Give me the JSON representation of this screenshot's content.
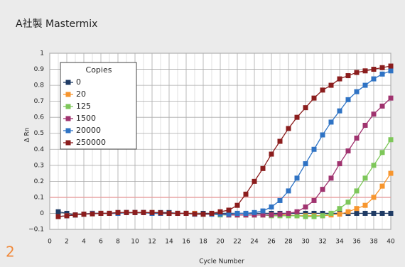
{
  "chart_data": {
    "type": "line",
    "title": "A社製 Mastermix",
    "panel_number": "2",
    "x_label": "Cycle Number",
    "y_label": "Δ Rn",
    "legend_title": "Copies",
    "x": [
      1,
      2,
      3,
      4,
      5,
      6,
      7,
      8,
      9,
      10,
      11,
      12,
      13,
      14,
      15,
      16,
      17,
      18,
      19,
      20,
      21,
      22,
      23,
      24,
      25,
      26,
      27,
      28,
      29,
      30,
      31,
      32,
      33,
      34,
      35,
      36,
      37,
      38,
      39,
      40
    ],
    "series": [
      {
        "name": "0",
        "color": "#1f3b64",
        "values": [
          0.01,
          0,
          -0.01,
          -0.005,
          0,
          0,
          0,
          0.005,
          0.005,
          0.005,
          0.005,
          0.005,
          0.005,
          0.005,
          0,
          0,
          0,
          0,
          0,
          0,
          0,
          0,
          0,
          0,
          0,
          0,
          0,
          0,
          0,
          0,
          0,
          0,
          0,
          0,
          0,
          0,
          0,
          0,
          0,
          0
        ]
      },
      {
        "name": "20",
        "color": "#f7962f",
        "values": [
          -0.02,
          -0.015,
          -0.01,
          -0.005,
          0,
          0,
          0,
          0,
          0.005,
          0.005,
          0.005,
          0.005,
          0,
          0,
          0,
          0,
          0,
          -0.005,
          -0.005,
          -0.005,
          -0.005,
          -0.01,
          -0.01,
          -0.01,
          -0.01,
          -0.01,
          -0.01,
          -0.01,
          -0.015,
          -0.015,
          -0.015,
          -0.015,
          -0.01,
          -0.005,
          0.01,
          0.03,
          0.05,
          0.1,
          0.17,
          0.25
        ]
      },
      {
        "name": "125",
        "color": "#7ec75a",
        "values": [
          -0.02,
          -0.015,
          -0.01,
          -0.005,
          0,
          0,
          0,
          0,
          0.005,
          0.005,
          0.005,
          0,
          0,
          0,
          0,
          0,
          -0.005,
          -0.005,
          -0.005,
          -0.01,
          -0.01,
          -0.01,
          -0.01,
          -0.01,
          -0.01,
          -0.015,
          -0.015,
          -0.015,
          -0.015,
          -0.02,
          -0.02,
          -0.015,
          0,
          0.03,
          0.07,
          0.14,
          0.22,
          0.3,
          0.38,
          0.46
        ]
      },
      {
        "name": "1500",
        "color": "#a0336f",
        "values": [
          -0.02,
          -0.015,
          -0.01,
          -0.005,
          0,
          0,
          0,
          0,
          0.005,
          0.005,
          0.005,
          0,
          0,
          0,
          0,
          0,
          -0.005,
          -0.005,
          -0.005,
          -0.005,
          -0.01,
          -0.01,
          -0.01,
          -0.01,
          -0.01,
          -0.01,
          -0.005,
          0,
          0.01,
          0.04,
          0.08,
          0.15,
          0.22,
          0.31,
          0.39,
          0.47,
          0.55,
          0.62,
          0.67,
          0.72
        ]
      },
      {
        "name": "20000",
        "color": "#2f73c4",
        "values": [
          -0.02,
          -0.015,
          -0.01,
          -0.005,
          0,
          0,
          0,
          0,
          0.005,
          0.005,
          0.005,
          0,
          0,
          0,
          0,
          0,
          -0.005,
          -0.005,
          -0.005,
          -0.005,
          -0.005,
          0,
          0,
          0.005,
          0.015,
          0.04,
          0.08,
          0.14,
          0.22,
          0.31,
          0.4,
          0.49,
          0.57,
          0.64,
          0.71,
          0.76,
          0.8,
          0.84,
          0.87,
          0.89
        ]
      },
      {
        "name": "250000",
        "color": "#8b1d1d",
        "values": [
          -0.02,
          -0.015,
          -0.01,
          -0.005,
          -0.003,
          0,
          0,
          0.005,
          0.005,
          0.005,
          0.005,
          0.005,
          0.003,
          0,
          0,
          0,
          -0.003,
          -0.005,
          0,
          0.01,
          0.02,
          0.05,
          0.12,
          0.2,
          0.28,
          0.37,
          0.45,
          0.53,
          0.6,
          0.66,
          0.72,
          0.77,
          0.8,
          0.84,
          0.86,
          0.88,
          0.89,
          0.9,
          0.91,
          0.92
        ]
      }
    ],
    "threshold": 0.1,
    "threshold_color": "#e8a0a0",
    "xlim": [
      0,
      40
    ],
    "xticks": [
      0,
      2,
      4,
      6,
      8,
      10,
      12,
      14,
      16,
      18,
      20,
      22,
      24,
      26,
      28,
      30,
      32,
      34,
      36,
      38,
      40
    ],
    "ylim": [
      -0.1,
      1
    ],
    "yticks": [
      {
        "value": -0.1,
        "label": "−0.1"
      },
      0,
      0.1,
      0.2,
      0.3,
      0.4,
      0.5,
      0.6,
      0.7,
      0.8,
      0.9,
      1
    ],
    "grid": true
  }
}
